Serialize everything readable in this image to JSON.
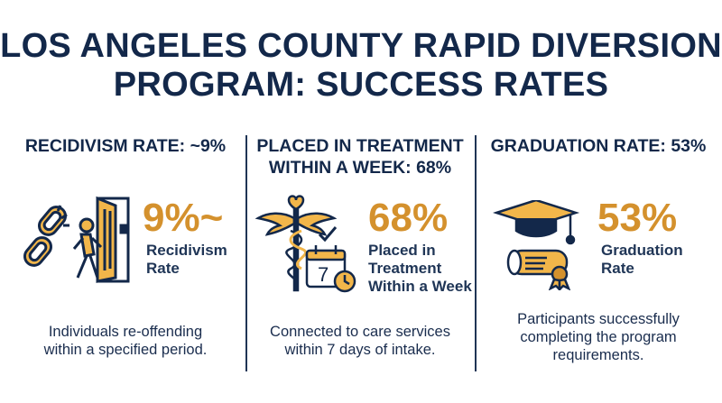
{
  "title": {
    "line1": "LOS ANGELES COUNTY RAPID DIVERSION",
    "line2": "PROGRAM: SUCCESS RATES"
  },
  "colors": {
    "navy": "#13284a",
    "gold": "#d4912d"
  },
  "columns": [
    {
      "heading": [
        "RECIDIVISM RATE: ~9%"
      ],
      "big_value": "9%~",
      "sub_lines": [
        "Recidivism",
        "Rate"
      ],
      "description": [
        "Individuals re-offending",
        "within a specified period."
      ],
      "icon": "broken-chain-exit-icon"
    },
    {
      "heading": [
        "PLACED IN TREATMENT",
        "WITHIN A WEEK: 68%"
      ],
      "big_value": "68%",
      "sub_lines": [
        "Placed in",
        "Treatment",
        "Within a Week"
      ],
      "description": [
        "Connected to care services",
        "within 7 days of intake."
      ],
      "icon": "caduceus-calendar-icon"
    },
    {
      "heading": [
        "GRADUATION RATE: 53%"
      ],
      "big_value": "53%",
      "sub_lines": [
        "Graduation",
        "Rate"
      ],
      "description": [
        "Participants successfully",
        "completing the program",
        "requirements."
      ],
      "icon": "graduation-cap-diploma-icon"
    }
  ]
}
